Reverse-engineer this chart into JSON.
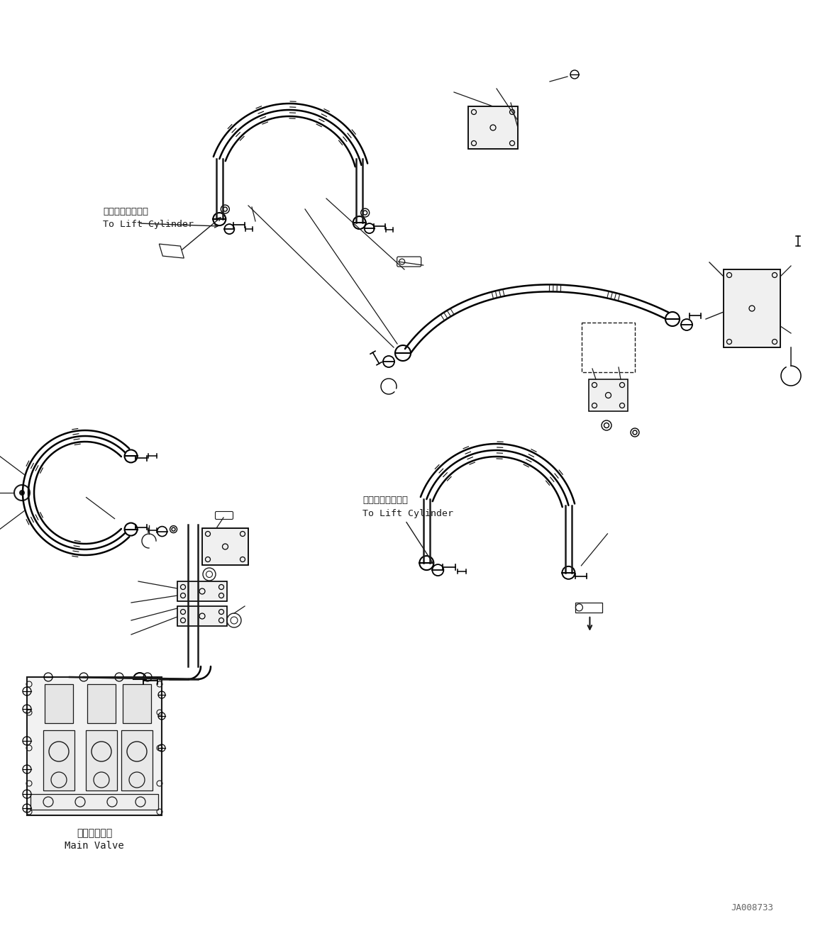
{
  "background_color": "#ffffff",
  "line_color": "#1a1a1a",
  "fig_width": 11.63,
  "fig_height": 13.16,
  "dpi": 100,
  "watermark": "JA008733",
  "label1_jp": "リフトシリンダヘ",
  "label1_en": "To Lift Cylinder",
  "label2_jp": "リフトシリンダヘ",
  "label2_en": "To Lift Cylinder",
  "label3_jp": "メインバルブ",
  "label3_en": "Main Valve"
}
